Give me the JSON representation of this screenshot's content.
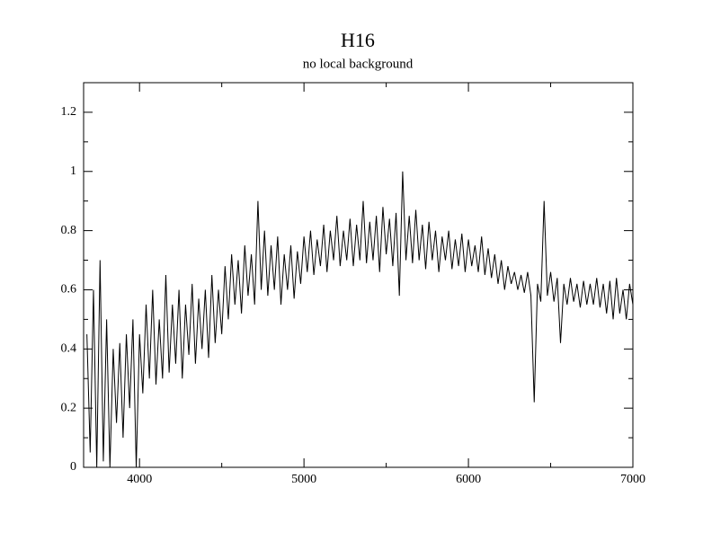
{
  "chart_data": {
    "type": "line",
    "title": "H16",
    "subtitle": "no local background",
    "x": [
      3680,
      3700,
      3720,
      3740,
      3760,
      3780,
      3800,
      3820,
      3840,
      3860,
      3880,
      3900,
      3920,
      3940,
      3960,
      3980,
      4000,
      4020,
      4040,
      4060,
      4080,
      4100,
      4120,
      4140,
      4160,
      4180,
      4200,
      4220,
      4240,
      4260,
      4280,
      4300,
      4320,
      4340,
      4360,
      4380,
      4400,
      4420,
      4440,
      4460,
      4480,
      4500,
      4520,
      4540,
      4560,
      4580,
      4600,
      4620,
      4640,
      4660,
      4680,
      4700,
      4720,
      4740,
      4760,
      4780,
      4800,
      4820,
      4840,
      4860,
      4880,
      4900,
      4920,
      4940,
      4960,
      4980,
      5000,
      5020,
      5040,
      5060,
      5080,
      5100,
      5120,
      5140,
      5160,
      5180,
      5200,
      5220,
      5240,
      5260,
      5280,
      5300,
      5320,
      5340,
      5360,
      5380,
      5400,
      5420,
      5440,
      5460,
      5480,
      5500,
      5520,
      5540,
      5560,
      5580,
      5600,
      5620,
      5640,
      5660,
      5680,
      5700,
      5720,
      5740,
      5760,
      5780,
      5800,
      5820,
      5840,
      5860,
      5880,
      5900,
      5920,
      5940,
      5960,
      5980,
      6000,
      6020,
      6040,
      6060,
      6080,
      6100,
      6120,
      6140,
      6160,
      6180,
      6200,
      6220,
      6240,
      6260,
      6280,
      6300,
      6320,
      6340,
      6360,
      6380,
      6400,
      6420,
      6440,
      6460,
      6480,
      6500,
      6520,
      6540,
      6560,
      6580,
      6600,
      6620,
      6640,
      6660,
      6680,
      6700,
      6720,
      6740,
      6760,
      6780,
      6800,
      6820,
      6840,
      6860,
      6880,
      6900,
      6920,
      6940,
      6960,
      6980,
      7000
    ],
    "values": [
      0.45,
      0.05,
      0.6,
      0,
      0.7,
      0.02,
      0.5,
      0,
      0.4,
      0.15,
      0.42,
      0.1,
      0.45,
      0.2,
      0.5,
      0,
      0.45,
      0.25,
      0.55,
      0.3,
      0.6,
      0.28,
      0.5,
      0.3,
      0.65,
      0.32,
      0.55,
      0.35,
      0.6,
      0.3,
      0.55,
      0.38,
      0.62,
      0.35,
      0.57,
      0.4,
      0.6,
      0.37,
      0.65,
      0.42,
      0.6,
      0.45,
      0.68,
      0.5,
      0.72,
      0.55,
      0.7,
      0.52,
      0.75,
      0.58,
      0.72,
      0.55,
      0.9,
      0.6,
      0.8,
      0.58,
      0.75,
      0.6,
      0.78,
      0.55,
      0.72,
      0.6,
      0.75,
      0.57,
      0.73,
      0.62,
      0.78,
      0.66,
      0.8,
      0.65,
      0.77,
      0.68,
      0.82,
      0.66,
      0.8,
      0.7,
      0.85,
      0.68,
      0.8,
      0.7,
      0.84,
      0.68,
      0.82,
      0.7,
      0.9,
      0.69,
      0.83,
      0.7,
      0.85,
      0.66,
      0.88,
      0.72,
      0.84,
      0.68,
      0.86,
      0.58,
      1.0,
      0.7,
      0.85,
      0.69,
      0.87,
      0.7,
      0.82,
      0.67,
      0.83,
      0.7,
      0.8,
      0.66,
      0.78,
      0.7,
      0.8,
      0.67,
      0.77,
      0.68,
      0.79,
      0.66,
      0.77,
      0.68,
      0.75,
      0.66,
      0.78,
      0.65,
      0.74,
      0.64,
      0.72,
      0.62,
      0.7,
      0.6,
      0.68,
      0.62,
      0.66,
      0.6,
      0.65,
      0.59,
      0.66,
      0.58,
      0.22,
      0.62,
      0.56,
      0.9,
      0.58,
      0.66,
      0.56,
      0.64,
      0.42,
      0.62,
      0.55,
      0.64,
      0.56,
      0.62,
      0.54,
      0.63,
      0.55,
      0.62,
      0.55,
      0.64,
      0.54,
      0.62,
      0.52,
      0.63,
      0.5,
      0.64,
      0.52,
      0.6,
      0.5,
      0.62,
      0.55
    ],
    "color": "#000000",
    "xlim": [
      3660,
      7000
    ],
    "xticks": [
      4000,
      5000,
      6000,
      7000
    ],
    "xminorticks": [
      4500,
      5500,
      6500
    ],
    "ylim": [
      0,
      1.3
    ],
    "yticks": [
      0,
      0.2,
      0.4,
      0.6,
      0.8,
      1,
      1.2
    ],
    "yminorticks": [
      0.1,
      0.3,
      0.5,
      0.7,
      0.9,
      1.1
    ],
    "grid": false
  }
}
